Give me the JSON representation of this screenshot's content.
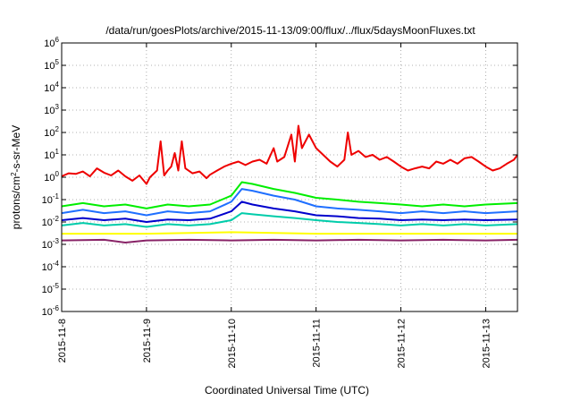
{
  "chart_data": {
    "type": "line",
    "title": "/data/run/goesPlots/archive/2015-11-13/09:00/flux/../flux/5daysMoonFluxes.txt",
    "xlabel": "Coordinated Universal Time (UTC)",
    "ylabel": {
      "prefix": "protons/cm",
      "sup": "2",
      "suffix": "-s-sr-MeV"
    },
    "y_scale": "log",
    "ylim_exp": [
      -6,
      6
    ],
    "y_ticks": [
      {
        "base": "10",
        "exp": "6"
      },
      {
        "base": "10",
        "exp": "5"
      },
      {
        "base": "10",
        "exp": "4"
      },
      {
        "base": "10",
        "exp": "3"
      },
      {
        "base": "10",
        "exp": "2"
      },
      {
        "base": "10",
        "exp": "1"
      },
      {
        "base": "10",
        "exp": "0"
      },
      {
        "base": "10",
        "exp": "-1"
      },
      {
        "base": "10",
        "exp": "-2"
      },
      {
        "base": "10",
        "exp": "-3"
      },
      {
        "base": "10",
        "exp": "-4"
      },
      {
        "base": "10",
        "exp": "-5"
      },
      {
        "base": "10",
        "exp": "-6"
      }
    ],
    "x_ticks": [
      "2015-11-8",
      "2015-11-9",
      "2015-11-10",
      "2015-11-11",
      "2015-11-12",
      "2015-11-13"
    ],
    "xlim": [
      "2015-11-08T00:00",
      "2015-11-13T09:00"
    ],
    "grid": "dotted",
    "legend": "none",
    "series": [
      {
        "color": "#ee0000",
        "points": [
          [
            "2015-11-08T00:00",
            1.1
          ],
          [
            "2015-11-08T02:00",
            1.5
          ],
          [
            "2015-11-08T04:00",
            1.4
          ],
          [
            "2015-11-08T06:00",
            1.8
          ],
          [
            "2015-11-08T08:00",
            1.1
          ],
          [
            "2015-11-08T10:00",
            2.5
          ],
          [
            "2015-11-08T12:00",
            1.6
          ],
          [
            "2015-11-08T14:00",
            1.2
          ],
          [
            "2015-11-08T16:00",
            2.0
          ],
          [
            "2015-11-08T18:00",
            1.1
          ],
          [
            "2015-11-08T20:00",
            0.7
          ],
          [
            "2015-11-08T22:00",
            1.2
          ],
          [
            "2015-11-09T00:00",
            0.5
          ],
          [
            "2015-11-09T01:00",
            1.0
          ],
          [
            "2015-11-09T03:00",
            2.0
          ],
          [
            "2015-11-09T04:00",
            40
          ],
          [
            "2015-11-09T05:00",
            1.2
          ],
          [
            "2015-11-09T06:00",
            2.0
          ],
          [
            "2015-11-09T07:00",
            3.0
          ],
          [
            "2015-11-09T08:00",
            12
          ],
          [
            "2015-11-09T09:00",
            2.0
          ],
          [
            "2015-11-09T10:00",
            40
          ],
          [
            "2015-11-09T11:00",
            2.5
          ],
          [
            "2015-11-09T13:00",
            1.5
          ],
          [
            "2015-11-09T15:00",
            1.8
          ],
          [
            "2015-11-09T17:00",
            0.9
          ],
          [
            "2015-11-09T18:00",
            1.3
          ],
          [
            "2015-11-09T20:00",
            2.0
          ],
          [
            "2015-11-09T22:00",
            3.0
          ],
          [
            "2015-11-10T00:00",
            4.0
          ],
          [
            "2015-11-10T02:00",
            5.0
          ],
          [
            "2015-11-10T04:00",
            3.5
          ],
          [
            "2015-11-10T06:00",
            5.0
          ],
          [
            "2015-11-10T08:00",
            6.0
          ],
          [
            "2015-11-10T10:00",
            4.0
          ],
          [
            "2015-11-10T12:00",
            20
          ],
          [
            "2015-11-10T13:00",
            5.0
          ],
          [
            "2015-11-10T15:00",
            8.0
          ],
          [
            "2015-11-10T17:00",
            80
          ],
          [
            "2015-11-10T18:00",
            5.0
          ],
          [
            "2015-11-10T19:00",
            200
          ],
          [
            "2015-11-10T20:00",
            20
          ],
          [
            "2015-11-10T22:00",
            80
          ],
          [
            "2015-11-11T00:00",
            20
          ],
          [
            "2015-11-11T02:00",
            10
          ],
          [
            "2015-11-11T04:00",
            5.0
          ],
          [
            "2015-11-11T06:00",
            3.0
          ],
          [
            "2015-11-11T08:00",
            6.0
          ],
          [
            "2015-11-11T09:00",
            100
          ],
          [
            "2015-11-11T10:00",
            10
          ],
          [
            "2015-11-11T12:00",
            15
          ],
          [
            "2015-11-11T14:00",
            8.0
          ],
          [
            "2015-11-11T16:00",
            10
          ],
          [
            "2015-11-11T18:00",
            6.0
          ],
          [
            "2015-11-11T20:00",
            8.0
          ],
          [
            "2015-11-11T22:00",
            5.0
          ],
          [
            "2015-11-12T00:00",
            3.0
          ],
          [
            "2015-11-12T02:00",
            2.0
          ],
          [
            "2015-11-12T04:00",
            2.5
          ],
          [
            "2015-11-12T06:00",
            3.0
          ],
          [
            "2015-11-12T08:00",
            2.5
          ],
          [
            "2015-11-12T10:00",
            5.0
          ],
          [
            "2015-11-12T12:00",
            4.0
          ],
          [
            "2015-11-12T14:00",
            6.0
          ],
          [
            "2015-11-12T16:00",
            4.0
          ],
          [
            "2015-11-12T18:00",
            7.0
          ],
          [
            "2015-11-12T20:00",
            8.0
          ],
          [
            "2015-11-12T22:00",
            5.0
          ],
          [
            "2015-11-13T00:00",
            3.0
          ],
          [
            "2015-11-13T02:00",
            2.0
          ],
          [
            "2015-11-13T04:00",
            2.5
          ],
          [
            "2015-11-13T06:00",
            4.0
          ],
          [
            "2015-11-13T08:00",
            6.0
          ],
          [
            "2015-11-13T09:00",
            10
          ]
        ]
      },
      {
        "color": "#00ee00",
        "points": [
          [
            "2015-11-08T00:00",
            0.05
          ],
          [
            "2015-11-08T06:00",
            0.07
          ],
          [
            "2015-11-08T12:00",
            0.05
          ],
          [
            "2015-11-08T18:00",
            0.06
          ],
          [
            "2015-11-09T00:00",
            0.04
          ],
          [
            "2015-11-09T06:00",
            0.06
          ],
          [
            "2015-11-09T12:00",
            0.05
          ],
          [
            "2015-11-09T18:00",
            0.06
          ],
          [
            "2015-11-10T00:00",
            0.15
          ],
          [
            "2015-11-10T03:00",
            0.6
          ],
          [
            "2015-11-10T06:00",
            0.5
          ],
          [
            "2015-11-10T12:00",
            0.3
          ],
          [
            "2015-11-10T18:00",
            0.2
          ],
          [
            "2015-11-11T00:00",
            0.12
          ],
          [
            "2015-11-11T06:00",
            0.1
          ],
          [
            "2015-11-11T12:00",
            0.08
          ],
          [
            "2015-11-11T18:00",
            0.07
          ],
          [
            "2015-11-12T00:00",
            0.06
          ],
          [
            "2015-11-12T06:00",
            0.05
          ],
          [
            "2015-11-12T12:00",
            0.06
          ],
          [
            "2015-11-12T18:00",
            0.05
          ],
          [
            "2015-11-13T00:00",
            0.06
          ],
          [
            "2015-11-13T09:00",
            0.07
          ]
        ]
      },
      {
        "color": "#1f6fff",
        "points": [
          [
            "2015-11-08T00:00",
            0.025
          ],
          [
            "2015-11-08T06:00",
            0.035
          ],
          [
            "2015-11-08T12:00",
            0.025
          ],
          [
            "2015-11-08T18:00",
            0.03
          ],
          [
            "2015-11-09T00:00",
            0.02
          ],
          [
            "2015-11-09T06:00",
            0.03
          ],
          [
            "2015-11-09T12:00",
            0.025
          ],
          [
            "2015-11-09T18:00",
            0.03
          ],
          [
            "2015-11-10T00:00",
            0.08
          ],
          [
            "2015-11-10T03:00",
            0.3
          ],
          [
            "2015-11-10T06:00",
            0.25
          ],
          [
            "2015-11-10T12:00",
            0.15
          ],
          [
            "2015-11-10T18:00",
            0.1
          ],
          [
            "2015-11-11T00:00",
            0.05
          ],
          [
            "2015-11-11T06:00",
            0.04
          ],
          [
            "2015-11-11T12:00",
            0.035
          ],
          [
            "2015-11-11T18:00",
            0.03
          ],
          [
            "2015-11-12T00:00",
            0.025
          ],
          [
            "2015-11-12T06:00",
            0.03
          ],
          [
            "2015-11-12T12:00",
            0.025
          ],
          [
            "2015-11-12T18:00",
            0.03
          ],
          [
            "2015-11-13T00:00",
            0.025
          ],
          [
            "2015-11-13T09:00",
            0.03
          ]
        ]
      },
      {
        "color": "#0000cc",
        "points": [
          [
            "2015-11-08T00:00",
            0.012
          ],
          [
            "2015-11-08T06:00",
            0.015
          ],
          [
            "2015-11-08T12:00",
            0.012
          ],
          [
            "2015-11-08T18:00",
            0.014
          ],
          [
            "2015-11-09T00:00",
            0.01
          ],
          [
            "2015-11-09T06:00",
            0.013
          ],
          [
            "2015-11-09T12:00",
            0.012
          ],
          [
            "2015-11-09T18:00",
            0.014
          ],
          [
            "2015-11-10T00:00",
            0.03
          ],
          [
            "2015-11-10T03:00",
            0.08
          ],
          [
            "2015-11-10T06:00",
            0.06
          ],
          [
            "2015-11-10T12:00",
            0.04
          ],
          [
            "2015-11-10T18:00",
            0.03
          ],
          [
            "2015-11-11T00:00",
            0.02
          ],
          [
            "2015-11-11T06:00",
            0.018
          ],
          [
            "2015-11-11T12:00",
            0.015
          ],
          [
            "2015-11-11T18:00",
            0.014
          ],
          [
            "2015-11-12T00:00",
            0.012
          ],
          [
            "2015-11-12T06:00",
            0.013
          ],
          [
            "2015-11-12T12:00",
            0.012
          ],
          [
            "2015-11-12T18:00",
            0.013
          ],
          [
            "2015-11-13T00:00",
            0.012
          ],
          [
            "2015-11-13T09:00",
            0.013
          ]
        ]
      },
      {
        "color": "#00ccaa",
        "points": [
          [
            "2015-11-08T00:00",
            0.007
          ],
          [
            "2015-11-08T06:00",
            0.009
          ],
          [
            "2015-11-08T12:00",
            0.007
          ],
          [
            "2015-11-08T18:00",
            0.008
          ],
          [
            "2015-11-09T00:00",
            0.006
          ],
          [
            "2015-11-09T06:00",
            0.008
          ],
          [
            "2015-11-09T12:00",
            0.007
          ],
          [
            "2015-11-09T18:00",
            0.008
          ],
          [
            "2015-11-10T00:00",
            0.012
          ],
          [
            "2015-11-10T03:00",
            0.025
          ],
          [
            "2015-11-10T06:00",
            0.022
          ],
          [
            "2015-11-10T12:00",
            0.018
          ],
          [
            "2015-11-10T18:00",
            0.015
          ],
          [
            "2015-11-11T00:00",
            0.012
          ],
          [
            "2015-11-11T06:00",
            0.01
          ],
          [
            "2015-11-11T12:00",
            0.009
          ],
          [
            "2015-11-11T18:00",
            0.008
          ],
          [
            "2015-11-12T00:00",
            0.007
          ],
          [
            "2015-11-12T06:00",
            0.008
          ],
          [
            "2015-11-12T12:00",
            0.007
          ],
          [
            "2015-11-12T18:00",
            0.008
          ],
          [
            "2015-11-13T00:00",
            0.007
          ],
          [
            "2015-11-13T09:00",
            0.008
          ]
        ]
      },
      {
        "color": "#ffff00",
        "points": [
          [
            "2015-11-08T00:00",
            0.003
          ],
          [
            "2015-11-09T00:00",
            0.003
          ],
          [
            "2015-11-10T00:00",
            0.0035
          ],
          [
            "2015-11-11T00:00",
            0.003
          ],
          [
            "2015-11-12T00:00",
            0.003
          ],
          [
            "2015-11-13T00:00",
            0.003
          ],
          [
            "2015-11-13T09:00",
            0.003
          ]
        ]
      },
      {
        "color": "#882266",
        "points": [
          [
            "2015-11-08T00:00",
            0.0015
          ],
          [
            "2015-11-08T12:00",
            0.0016
          ],
          [
            "2015-11-08T18:00",
            0.0012
          ],
          [
            "2015-11-09T00:00",
            0.0015
          ],
          [
            "2015-11-09T12:00",
            0.0016
          ],
          [
            "2015-11-10T00:00",
            0.0015
          ],
          [
            "2015-11-10T12:00",
            0.0016
          ],
          [
            "2015-11-11T00:00",
            0.0015
          ],
          [
            "2015-11-11T12:00",
            0.0016
          ],
          [
            "2015-11-12T00:00",
            0.0015
          ],
          [
            "2015-11-12T12:00",
            0.0016
          ],
          [
            "2015-11-13T00:00",
            0.0015
          ],
          [
            "2015-11-13T09:00",
            0.0016
          ]
        ]
      }
    ]
  }
}
